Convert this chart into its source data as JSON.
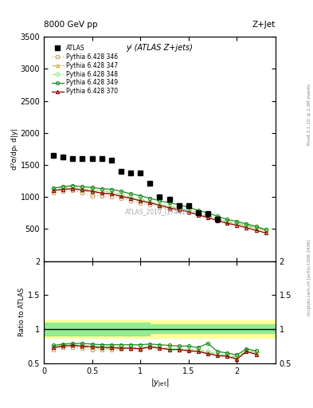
{
  "title_top_left": "8000 GeV pp",
  "title_top_right": "Z+Jet",
  "plot_label": "yʲ (ATLAS Z+jets)",
  "atlas_label": "ATLAS_2019_I1744201",
  "ylabel_main": "d²σ/dpₜ d|y|",
  "ylabel_ratio": "Ratio to ATLAS",
  "xlabel": "|y_{jet}|",
  "right_label_top": "Rivet 3.1.10; ≥ 2.3M events",
  "right_label_bottom": "mcplots.cern.ch [arXiv:1306.3436]",
  "x_values": [
    0.1,
    0.2,
    0.3,
    0.4,
    0.5,
    0.6,
    0.7,
    0.8,
    0.9,
    1.0,
    1.1,
    1.2,
    1.3,
    1.4,
    1.5,
    1.6,
    1.7,
    1.8,
    1.9,
    2.0,
    2.1,
    2.2,
    2.3
  ],
  "atlas_data": [
    1650,
    1620,
    1600,
    1600,
    1600,
    1600,
    1570,
    1400,
    1380,
    1380,
    1220,
    1000,
    960,
    870,
    860,
    750,
    740,
    660,
    null,
    null,
    null,
    null,
    null
  ],
  "py346_data": [
    1060,
    1090,
    1100,
    1070,
    1020,
    1010,
    1000,
    980,
    940,
    900,
    880,
    840,
    810,
    790,
    760,
    720,
    680,
    640,
    600,
    580,
    540,
    510,
    470
  ],
  "py347_data": [
    1100,
    1120,
    1130,
    1100,
    1080,
    1060,
    1050,
    1010,
    980,
    950,
    920,
    880,
    850,
    820,
    800,
    750,
    710,
    660,
    620,
    590,
    550,
    520,
    480
  ],
  "py348_data": [
    1120,
    1150,
    1160,
    1130,
    1110,
    1090,
    1080,
    1040,
    1000,
    960,
    930,
    880,
    860,
    820,
    800,
    750,
    700,
    660,
    620,
    590,
    560,
    530,
    490
  ],
  "py349_data": [
    1140,
    1160,
    1180,
    1160,
    1150,
    1130,
    1120,
    1090,
    1050,
    1020,
    980,
    940,
    910,
    880,
    840,
    790,
    750,
    700,
    650,
    620,
    580,
    540,
    490
  ],
  "py370_data": [
    1100,
    1120,
    1130,
    1110,
    1090,
    1060,
    1050,
    1010,
    980,
    940,
    910,
    870,
    830,
    800,
    770,
    720,
    680,
    630,
    590,
    560,
    520,
    480,
    440
  ],
  "ratio346": [
    0.7,
    0.73,
    0.73,
    0.72,
    0.69,
    0.7,
    0.7,
    0.71,
    0.71,
    0.7,
    0.73,
    0.72,
    0.7,
    0.7,
    0.68,
    0.68,
    0.65,
    0.62,
    0.6,
    0.55,
    0.68,
    0.64,
    null
  ],
  "ratio347": [
    0.73,
    0.76,
    0.76,
    0.74,
    0.73,
    0.72,
    0.72,
    0.72,
    0.72,
    0.72,
    0.74,
    0.73,
    0.72,
    0.7,
    0.7,
    0.69,
    0.66,
    0.63,
    0.62,
    0.58,
    0.68,
    0.66,
    null
  ],
  "ratio348": [
    0.74,
    0.77,
    0.77,
    0.76,
    0.75,
    0.74,
    0.74,
    0.74,
    0.73,
    0.72,
    0.75,
    0.73,
    0.72,
    0.71,
    0.7,
    0.69,
    0.67,
    0.63,
    0.62,
    0.59,
    0.69,
    0.66,
    null
  ],
  "ratio349": [
    0.76,
    0.78,
    0.79,
    0.79,
    0.78,
    0.77,
    0.77,
    0.77,
    0.77,
    0.77,
    0.78,
    0.77,
    0.76,
    0.75,
    0.75,
    0.73,
    0.79,
    0.67,
    0.65,
    0.62,
    0.71,
    0.68,
    null
  ],
  "ratio370": [
    0.73,
    0.75,
    0.76,
    0.75,
    0.74,
    0.73,
    0.73,
    0.72,
    0.72,
    0.71,
    0.74,
    0.72,
    0.7,
    0.7,
    0.68,
    0.67,
    0.64,
    0.61,
    0.6,
    0.56,
    0.67,
    0.63,
    null
  ],
  "band_inner_color": "#90EE90",
  "band_outer_color": "#FFFF99",
  "color346": "#D2A679",
  "color347": "#C8B44A",
  "color348": "#90EE90",
  "color349": "#228B22",
  "color370": "#8B0000",
  "ylim_main": [
    0,
    3500
  ],
  "ylim_ratio": [
    0.5,
    2.0
  ],
  "xlim": [
    0.0,
    2.4
  ],
  "yticks_main": [
    500,
    1000,
    1500,
    2000,
    2500,
    3000,
    3500
  ],
  "yticks_ratio": [
    0.5,
    1.0,
    1.5,
    2.0
  ]
}
